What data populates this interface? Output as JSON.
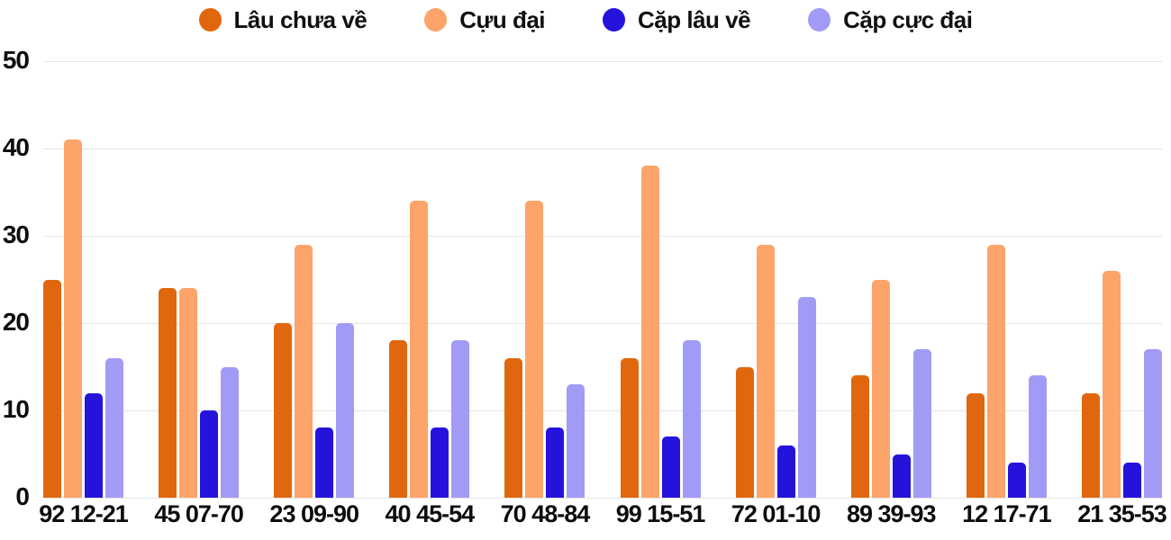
{
  "chart_data": {
    "type": "bar",
    "title": "",
    "xlabel": "",
    "ylabel": "",
    "ylim": [
      0,
      50
    ],
    "yticks": [
      0,
      10,
      20,
      30,
      40,
      50
    ],
    "grid": true,
    "legend_position": "top",
    "background": "#ffffff",
    "gridline_color": "#e5e5e5",
    "text_color": "#0d0d0d",
    "categories": [
      "92 12-21",
      "45 07-70",
      "23 09-90",
      "40 45-54",
      "70 48-84",
      "99 15-51",
      "72 01-10",
      "89 39-93",
      "12 17-71",
      "21 35-53"
    ],
    "series": [
      {
        "name": "Lâu chưa về",
        "color": "#e1670e",
        "values": [
          25,
          24,
          20,
          18,
          16,
          16,
          15,
          14,
          12,
          12
        ]
      },
      {
        "name": "Cựu đại",
        "color": "#fda46a",
        "values": [
          41,
          24,
          29,
          34,
          34,
          38,
          29,
          25,
          29,
          26
        ]
      },
      {
        "name": "Cặp lâu về",
        "color": "#2513dc",
        "values": [
          12,
          10,
          8,
          8,
          8,
          7,
          6,
          5,
          4,
          4
        ]
      },
      {
        "name": "Cặp cực đại",
        "color": "#a29bf5",
        "values": [
          16,
          15,
          20,
          18,
          13,
          18,
          23,
          17,
          14,
          17
        ]
      }
    ]
  }
}
